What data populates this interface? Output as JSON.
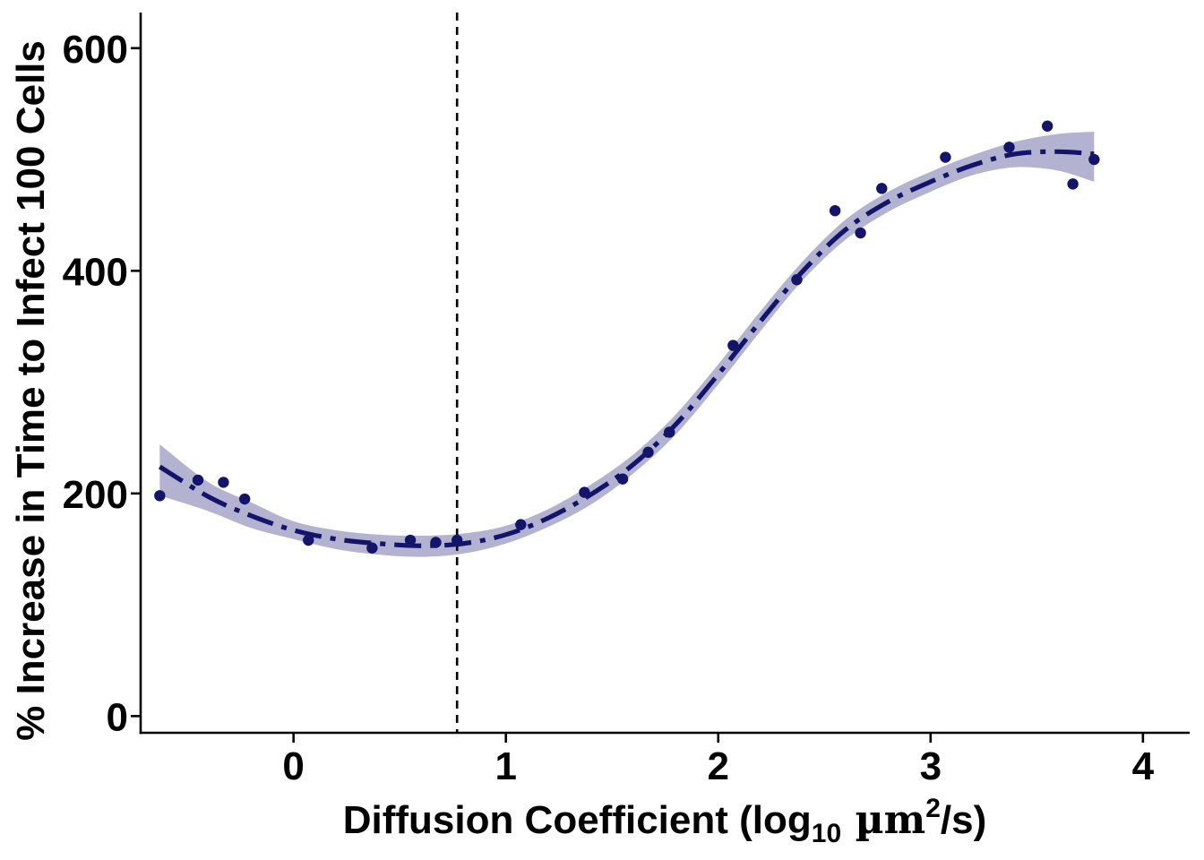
{
  "chart_data": {
    "type": "scatter",
    "title": "",
    "xlabel": {
      "main": "Diffusion Coefficient (log",
      "sub": "10",
      "unit": " µm",
      "sup": "2",
      "tail": "/s)"
    },
    "ylabel": "% Increase in Time to Infect 100 Cells",
    "xlim": [
      -0.72,
      4.22
    ],
    "ylim": [
      -15,
      632
    ],
    "x_ticks": [
      0,
      1,
      2,
      3,
      4
    ],
    "x_tick_labels": [
      "0",
      "1",
      "2",
      "3",
      "4"
    ],
    "y_ticks": [
      0,
      200,
      400,
      600
    ],
    "y_tick_labels": [
      "0",
      "200",
      "400",
      "600"
    ],
    "grid": false,
    "legend": "none",
    "colors": {
      "points": "#14146b",
      "fit_line": "#14146b",
      "ribbon": "#b3b3d1",
      "reference_line": "#000000",
      "axis": "#000000"
    },
    "reference_line": {
      "x": 0.77,
      "style": "dashed"
    },
    "series": [
      {
        "kind": "points",
        "x": [
          -0.63,
          -0.45,
          -0.33,
          -0.23,
          0.07,
          0.37,
          0.55,
          0.67,
          0.77,
          1.07,
          1.37,
          1.55,
          1.67,
          1.77,
          2.07,
          2.37,
          2.55,
          2.67,
          2.77,
          3.07,
          3.37,
          3.55,
          3.67,
          3.77
        ],
        "y": [
          198,
          212,
          210,
          195,
          158,
          151,
          158,
          156,
          158,
          172,
          201,
          213,
          237,
          255,
          333,
          392,
          454,
          434,
          474,
          502,
          511,
          530,
          478,
          500
        ]
      },
      {
        "kind": "smooth_fit",
        "x": [
          -0.63,
          -0.4,
          -0.2,
          0.0,
          0.2,
          0.4,
          0.6,
          0.8,
          1.0,
          1.2,
          1.4,
          1.6,
          1.8,
          2.0,
          2.2,
          2.4,
          2.6,
          2.8,
          3.0,
          3.2,
          3.4,
          3.6,
          3.77
        ],
        "y": [
          224,
          197,
          180,
          167,
          159,
          155,
          153,
          155,
          163,
          178,
          199,
          226,
          262,
          307,
          355,
          400,
          437,
          462,
          480,
          495,
          505,
          507,
          505
        ],
        "lower": [
          198,
          184,
          169,
          159,
          150,
          145,
          143,
          146,
          155,
          170,
          190,
          218,
          253,
          298,
          346,
          392,
          428,
          453,
          471,
          486,
          493,
          490,
          480
        ],
        "upper": [
          244,
          210,
          192,
          175,
          167,
          163,
          162,
          164,
          171,
          186,
          208,
          235,
          271,
          316,
          364,
          409,
          446,
          471,
          489,
          504,
          516,
          523,
          525
        ]
      }
    ]
  }
}
